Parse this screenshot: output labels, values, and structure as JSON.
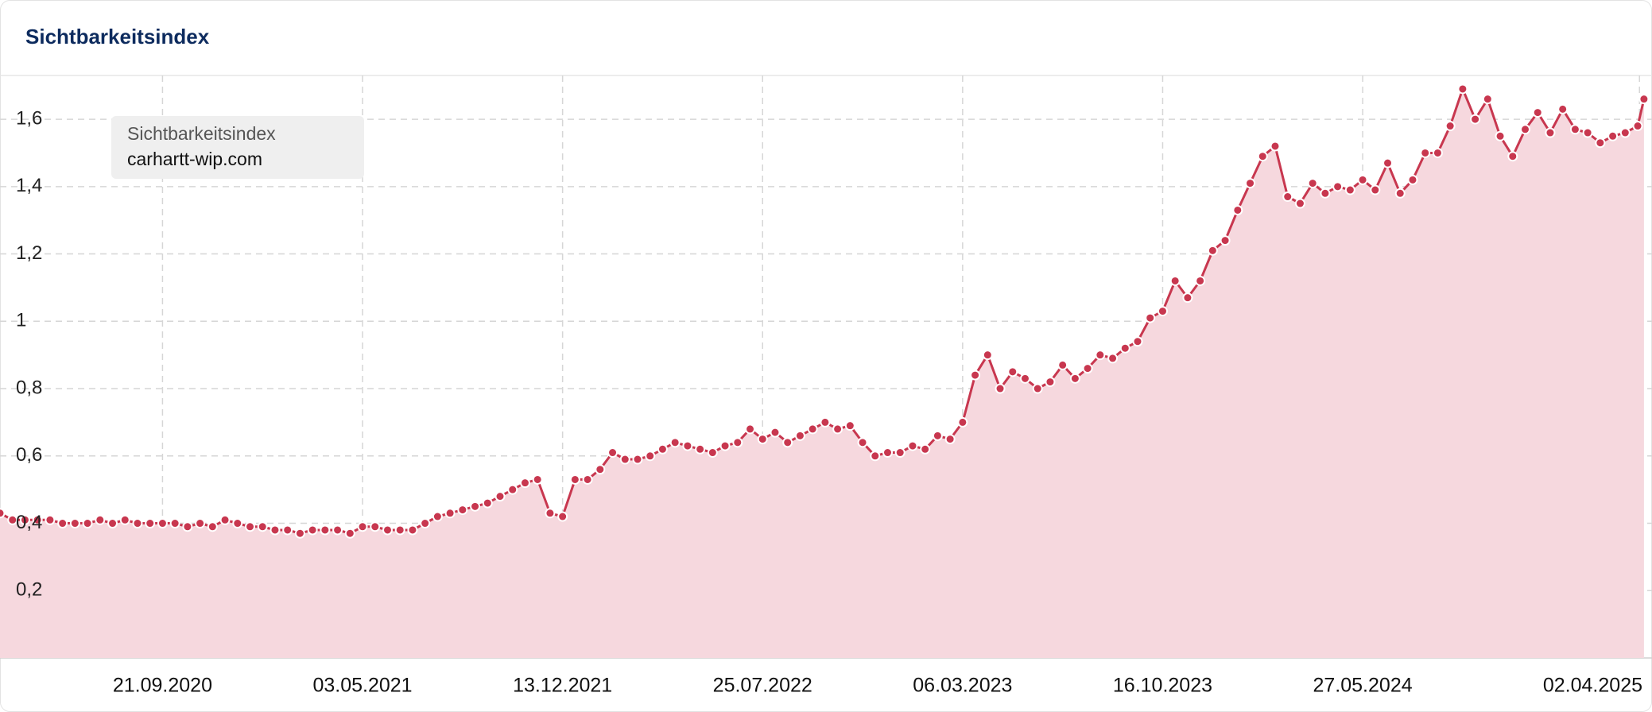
{
  "chart_data": {
    "type": "line",
    "title": "Sichtbarkeitsindex",
    "legend": {
      "title": "Sichtbarkeitsindex",
      "position": "upper left"
    },
    "x": [
      "2020-03-23",
      "2020-04-06",
      "2020-04-20",
      "2020-05-04",
      "2020-05-18",
      "2020-06-01",
      "2020-06-15",
      "2020-06-29",
      "2020-07-13",
      "2020-07-27",
      "2020-08-10",
      "2020-08-24",
      "2020-09-07",
      "2020-09-21",
      "2020-10-05",
      "2020-10-19",
      "2020-11-02",
      "2020-11-16",
      "2020-11-30",
      "2020-12-14",
      "2020-12-28",
      "2021-01-11",
      "2021-01-25",
      "2021-02-08",
      "2021-02-22",
      "2021-03-08",
      "2021-03-22",
      "2021-04-05",
      "2021-04-19",
      "2021-05-03",
      "2021-05-17",
      "2021-05-31",
      "2021-06-14",
      "2021-06-28",
      "2021-07-12",
      "2021-07-26",
      "2021-08-09",
      "2021-08-23",
      "2021-09-06",
      "2021-09-20",
      "2021-10-04",
      "2021-10-18",
      "2021-11-01",
      "2021-11-15",
      "2021-11-29",
      "2021-12-13",
      "2021-12-27",
      "2022-01-10",
      "2022-01-24",
      "2022-02-07",
      "2022-02-21",
      "2022-03-07",
      "2022-03-21",
      "2022-04-04",
      "2022-04-18",
      "2022-05-02",
      "2022-05-16",
      "2022-05-30",
      "2022-06-13",
      "2022-06-27",
      "2022-07-11",
      "2022-07-25",
      "2022-08-08",
      "2022-08-22",
      "2022-09-05",
      "2022-09-19",
      "2022-10-03",
      "2022-10-17",
      "2022-10-31",
      "2022-11-14",
      "2022-11-28",
      "2022-12-12",
      "2022-12-26",
      "2023-01-09",
      "2023-01-23",
      "2023-02-06",
      "2023-02-20",
      "2023-03-06",
      "2023-03-20",
      "2023-04-03",
      "2023-04-17",
      "2023-05-01",
      "2023-05-15",
      "2023-05-29",
      "2023-06-12",
      "2023-06-26",
      "2023-07-10",
      "2023-07-24",
      "2023-08-07",
      "2023-08-21",
      "2023-09-04",
      "2023-09-18",
      "2023-10-02",
      "2023-10-16",
      "2023-10-30",
      "2023-11-13",
      "2023-11-27",
      "2023-12-11",
      "2023-12-25",
      "2024-01-08",
      "2024-01-22",
      "2024-02-05",
      "2024-02-19",
      "2024-03-04",
      "2024-03-18",
      "2024-04-01",
      "2024-04-15",
      "2024-04-29",
      "2024-05-13",
      "2024-05-27",
      "2024-06-10",
      "2024-06-24",
      "2024-07-08",
      "2024-07-22",
      "2024-08-05",
      "2024-08-19",
      "2024-09-02",
      "2024-09-16",
      "2024-09-30",
      "2024-10-14",
      "2024-10-28",
      "2024-11-11",
      "2024-11-25",
      "2024-12-09",
      "2024-12-23",
      "2025-01-06",
      "2025-01-20",
      "2025-02-03",
      "2025-02-17",
      "2025-03-03",
      "2025-03-17",
      "2025-03-31",
      "2025-04-07"
    ],
    "series": [
      {
        "name": "carhartt-wip.com",
        "color": "#c8374f",
        "fill": "#f6d8de",
        "values": [
          0.43,
          0.41,
          0.41,
          0.41,
          0.41,
          0.4,
          0.4,
          0.4,
          0.41,
          0.4,
          0.41,
          0.4,
          0.4,
          0.4,
          0.4,
          0.39,
          0.4,
          0.39,
          0.41,
          0.4,
          0.39,
          0.39,
          0.38,
          0.38,
          0.37,
          0.38,
          0.38,
          0.38,
          0.37,
          0.39,
          0.39,
          0.38,
          0.38,
          0.38,
          0.4,
          0.42,
          0.43,
          0.44,
          0.45,
          0.46,
          0.48,
          0.5,
          0.52,
          0.53,
          0.43,
          0.42,
          0.53,
          0.53,
          0.56,
          0.61,
          0.59,
          0.59,
          0.6,
          0.62,
          0.64,
          0.63,
          0.62,
          0.61,
          0.63,
          0.64,
          0.68,
          0.65,
          0.67,
          0.64,
          0.66,
          0.68,
          0.7,
          0.68,
          0.69,
          0.64,
          0.6,
          0.61,
          0.61,
          0.63,
          0.62,
          0.66,
          0.65,
          0.7,
          0.84,
          0.9,
          0.8,
          0.85,
          0.83,
          0.8,
          0.82,
          0.87,
          0.83,
          0.86,
          0.9,
          0.89,
          0.92,
          0.94,
          1.01,
          1.03,
          1.12,
          1.07,
          1.12,
          1.21,
          1.24,
          1.33,
          1.41,
          1.49,
          1.52,
          1.37,
          1.35,
          1.41,
          1.38,
          1.4,
          1.39,
          1.42,
          1.39,
          1.47,
          1.38,
          1.42,
          1.5,
          1.5,
          1.58,
          1.69,
          1.6,
          1.66,
          1.55,
          1.49,
          1.57,
          1.62,
          1.56,
          1.63,
          1.57,
          1.56,
          1.53,
          1.55,
          1.56,
          1.58,
          1.66
        ]
      }
    ],
    "xlim": [
      "2020-03-23",
      "2025-04-16"
    ],
    "xticks": [
      {
        "value": "2020-09-21",
        "label": "21.09.2020"
      },
      {
        "value": "2021-05-03",
        "label": "03.05.2021"
      },
      {
        "value": "2021-12-13",
        "label": "13.12.2021"
      },
      {
        "value": "2022-07-25",
        "label": "25.07.2022"
      },
      {
        "value": "2023-03-06",
        "label": "06.03.2023"
      },
      {
        "value": "2023-10-16",
        "label": "16.10.2023"
      },
      {
        "value": "2024-05-27",
        "label": "27.05.2024"
      },
      {
        "value": "2025-04-02",
        "label": "02.04.2025"
      }
    ],
    "ylim": [
      0,
      1.73
    ],
    "yticks": [
      {
        "value": 0.2,
        "label": "0,2"
      },
      {
        "value": 0.4,
        "label": "0,4"
      },
      {
        "value": 0.6,
        "label": "0,6"
      },
      {
        "value": 0.8,
        "label": "0,8"
      },
      {
        "value": 1,
        "label": "1"
      },
      {
        "value": 1.2,
        "label": "1,2"
      },
      {
        "value": 1.4,
        "label": "1,4"
      },
      {
        "value": 1.6,
        "label": "1,6"
      }
    ],
    "grid": true
  }
}
